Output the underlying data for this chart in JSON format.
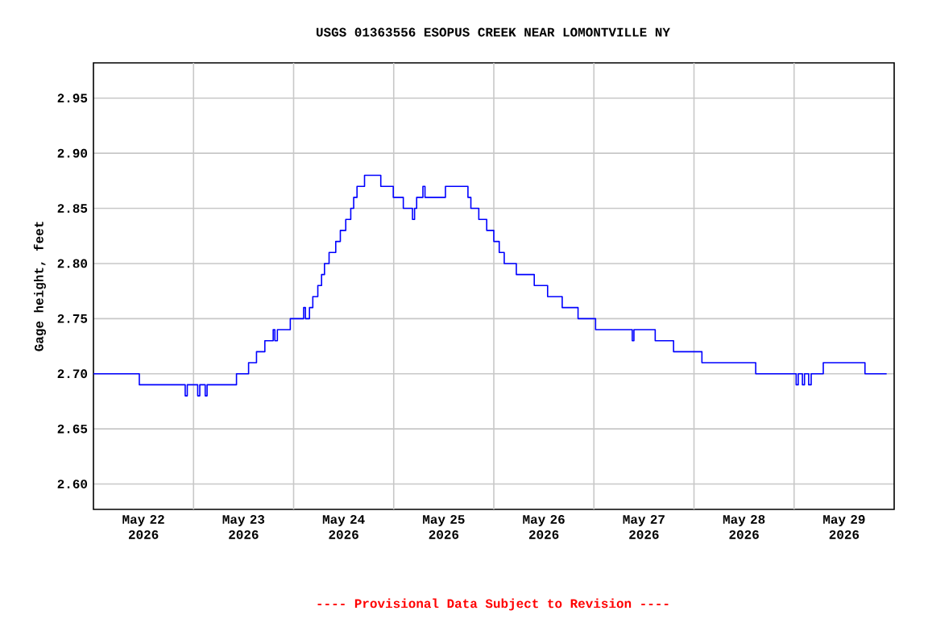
{
  "chart_data": {
    "type": "step",
    "title": "USGS 01363556 ESOPUS CREEK NEAR LOMONTVILLE NY",
    "ylabel": "Gage height, feet",
    "annotations": [
      "---- Provisional Data Subject to Revision ----"
    ],
    "xlim": [
      "2026-05-22T00:00",
      "2026-05-30T00:00"
    ],
    "xticks": [
      {
        "value": "2026-05-22T12:00",
        "label": "May 22 2026"
      },
      {
        "value": "2026-05-23T12:00",
        "label": "May 23 2026"
      },
      {
        "value": "2026-05-24T12:00",
        "label": "May 24 2026"
      },
      {
        "value": "2026-05-25T12:00",
        "label": "May 25 2026"
      },
      {
        "value": "2026-05-26T12:00",
        "label": "May 26 2026"
      },
      {
        "value": "2026-05-27T12:00",
        "label": "May 27 2026"
      },
      {
        "value": "2026-05-28T12:00",
        "label": "May 28 2026"
      },
      {
        "value": "2026-05-29T12:00",
        "label": "May 29 2026"
      },
      {
        "value": "2026-05-23T00:00",
        "label": null
      },
      {
        "value": "2026-05-24T00:00",
        "label": null
      },
      {
        "value": "2026-05-25T00:00",
        "label": null
      },
      {
        "value": "2026-05-26T00:00",
        "label": null
      },
      {
        "value": "2026-05-27T00:00",
        "label": null
      },
      {
        "value": "2026-05-28T00:00",
        "label": null
      },
      {
        "value": "2026-05-29T00:00",
        "label": null
      }
    ],
    "ylim": [
      2.577,
      2.982
    ],
    "yticks": [
      {
        "value": 2.6,
        "label": "2.60"
      },
      {
        "value": 2.65,
        "label": "2.65"
      },
      {
        "value": 2.7,
        "label": "2.70"
      },
      {
        "value": 2.75,
        "label": "2.75"
      },
      {
        "value": 2.8,
        "label": "2.80"
      },
      {
        "value": 2.85,
        "label": "2.85"
      },
      {
        "value": 2.9,
        "label": "2.90"
      },
      {
        "value": 2.95,
        "label": "2.95"
      }
    ],
    "grid": true,
    "series": [
      {
        "color": "#0000ff",
        "x": [
          "2026-05-22T00:00",
          "2026-05-22T11:00",
          "2026-05-22T22:00",
          "2026-05-22T22:30",
          "2026-05-23T01:00",
          "2026-05-23T01:30",
          "2026-05-23T02:48",
          "2026-05-23T03:15",
          "2026-05-23T10:18",
          "2026-05-23T13:12",
          "2026-05-23T15:06",
          "2026-05-23T17:06",
          "2026-05-23T19:06",
          "2026-05-23T19:30",
          "2026-05-23T20:06",
          "2026-05-23T23:12",
          "2026-05-24T02:24",
          "2026-05-24T02:50",
          "2026-05-24T03:48",
          "2026-05-24T04:36",
          "2026-05-24T05:48",
          "2026-05-24T06:42",
          "2026-05-24T07:24",
          "2026-05-24T08:30",
          "2026-05-24T10:06",
          "2026-05-24T11:12",
          "2026-05-24T12:30",
          "2026-05-24T13:42",
          "2026-05-24T14:24",
          "2026-05-24T15:12",
          "2026-05-24T17:00",
          "2026-05-24T20:54",
          "2026-05-24T23:54",
          "2026-05-25T02:18",
          "2026-05-25T04:30",
          "2026-05-25T05:00",
          "2026-05-25T05:30",
          "2026-05-25T07:00",
          "2026-05-25T07:30",
          "2026-05-25T12:24",
          "2026-05-25T17:48",
          "2026-05-25T18:30",
          "2026-05-25T20:24",
          "2026-05-25T22:18",
          "2026-05-26T00:00",
          "2026-05-26T01:18",
          "2026-05-26T02:30",
          "2026-05-26T05:24",
          "2026-05-26T09:42",
          "2026-05-26T12:54",
          "2026-05-26T16:24",
          "2026-05-26T20:12",
          "2026-05-27T00:24",
          "2026-05-27T09:12",
          "2026-05-27T09:36",
          "2026-05-27T14:42",
          "2026-05-27T19:06",
          "2026-05-28T01:54",
          "2026-05-28T14:48",
          "2026-05-29T00:30",
          "2026-05-29T01:00",
          "2026-05-29T02:00",
          "2026-05-29T02:30",
          "2026-05-29T03:30",
          "2026-05-29T04:06",
          "2026-05-29T07:00",
          "2026-05-29T17:00",
          "2026-05-29T22:12"
        ],
        "values": [
          2.7,
          2.69,
          2.68,
          2.69,
          2.68,
          2.69,
          2.68,
          2.69,
          2.7,
          2.71,
          2.72,
          2.73,
          2.74,
          2.73,
          2.74,
          2.75,
          2.76,
          2.75,
          2.76,
          2.77,
          2.78,
          2.79,
          2.8,
          2.81,
          2.82,
          2.83,
          2.84,
          2.85,
          2.86,
          2.87,
          2.88,
          2.87,
          2.86,
          2.85,
          2.84,
          2.85,
          2.86,
          2.87,
          2.86,
          2.87,
          2.86,
          2.85,
          2.84,
          2.83,
          2.82,
          2.81,
          2.8,
          2.79,
          2.78,
          2.77,
          2.76,
          2.75,
          2.74,
          2.73,
          2.74,
          2.73,
          2.72,
          2.71,
          2.7,
          2.69,
          2.7,
          2.69,
          2.7,
          2.69,
          2.7,
          2.71,
          2.7,
          2.7
        ]
      }
    ]
  }
}
